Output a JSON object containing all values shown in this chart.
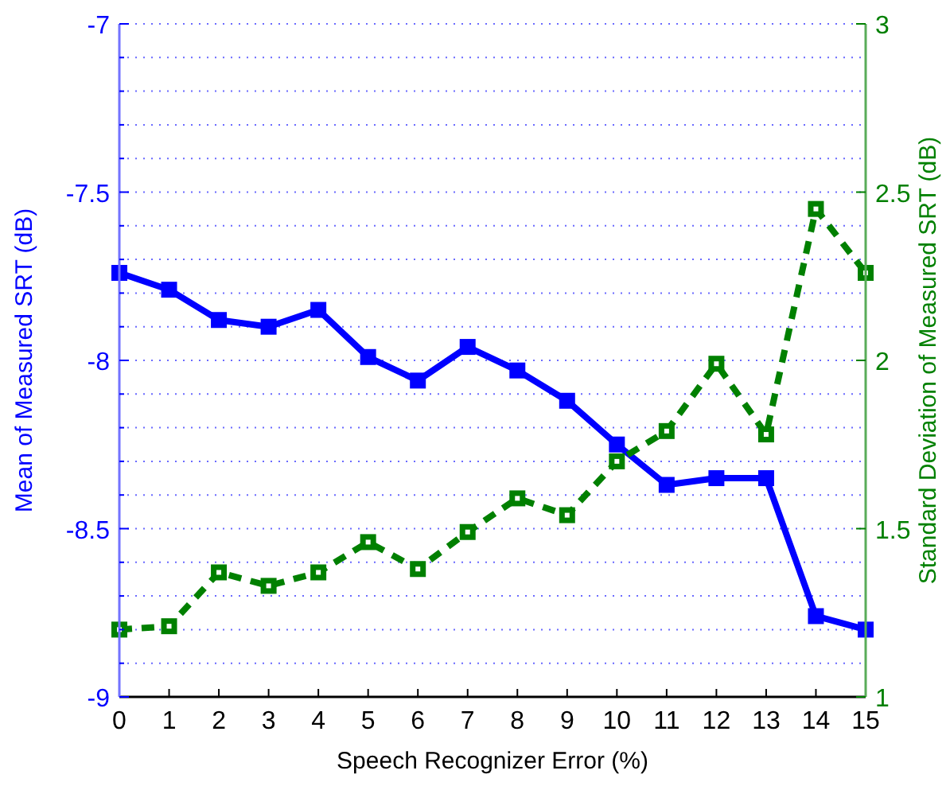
{
  "chart_data": {
    "type": "line",
    "xlabel": "Speech Recognizer Error (%)",
    "ylabel": "Mean of Measured SRT (dB)",
    "y2label": "Standard Deviation of Measured SRT (dB)",
    "x": [
      0,
      1,
      2,
      3,
      4,
      5,
      6,
      7,
      8,
      9,
      10,
      11,
      12,
      13,
      14,
      15
    ],
    "series": [
      {
        "color": "#0000ff",
        "marker": "square",
        "line_style": "solid",
        "values": [
          -7.74,
          -7.79,
          -7.88,
          -7.9,
          -7.85,
          -7.99,
          -8.06,
          -7.96,
          -8.03,
          -8.12,
          -8.25,
          -8.37,
          -8.35,
          -8.35,
          -8.76,
          -8.8
        ]
      },
      {
        "color": "#008000",
        "marker": "square",
        "line_style": "dashed",
        "axis": "y2",
        "values": [
          1.2,
          1.21,
          1.37,
          1.33,
          1.37,
          1.46,
          1.38,
          1.49,
          1.59,
          1.54,
          1.7,
          1.79,
          1.99,
          1.78,
          2.45,
          2.26
        ]
      }
    ],
    "xlim": [
      0,
      15
    ],
    "xticks": [
      0,
      1,
      2,
      3,
      4,
      5,
      6,
      7,
      8,
      9,
      10,
      11,
      12,
      13,
      14,
      15
    ],
    "ylim": [
      -9,
      -7
    ],
    "yticks": [
      -9,
      {
        "value": -8.9,
        "label": null
      },
      {
        "value": -8.8,
        "label": null
      },
      {
        "value": -8.7,
        "label": null
      },
      {
        "value": -8.6,
        "label": null
      },
      -8.5,
      {
        "value": -8.4,
        "label": null
      },
      {
        "value": -8.3,
        "label": null
      },
      {
        "value": -8.2,
        "label": null
      },
      {
        "value": -8.1,
        "label": null
      },
      -8,
      {
        "value": -7.9,
        "label": null
      },
      {
        "value": -7.8,
        "label": null
      },
      {
        "value": -7.7,
        "label": null
      },
      {
        "value": -7.6,
        "label": null
      },
      -7.5,
      {
        "value": -7.4,
        "label": null
      },
      {
        "value": -7.3,
        "label": null
      },
      {
        "value": -7.2,
        "label": null
      },
      {
        "value": -7.1,
        "label": null
      },
      -7
    ],
    "y2lim": [
      1,
      3
    ],
    "y2ticks": [
      1,
      1.5,
      2,
      2.5,
      3
    ],
    "grid": "y"
  }
}
